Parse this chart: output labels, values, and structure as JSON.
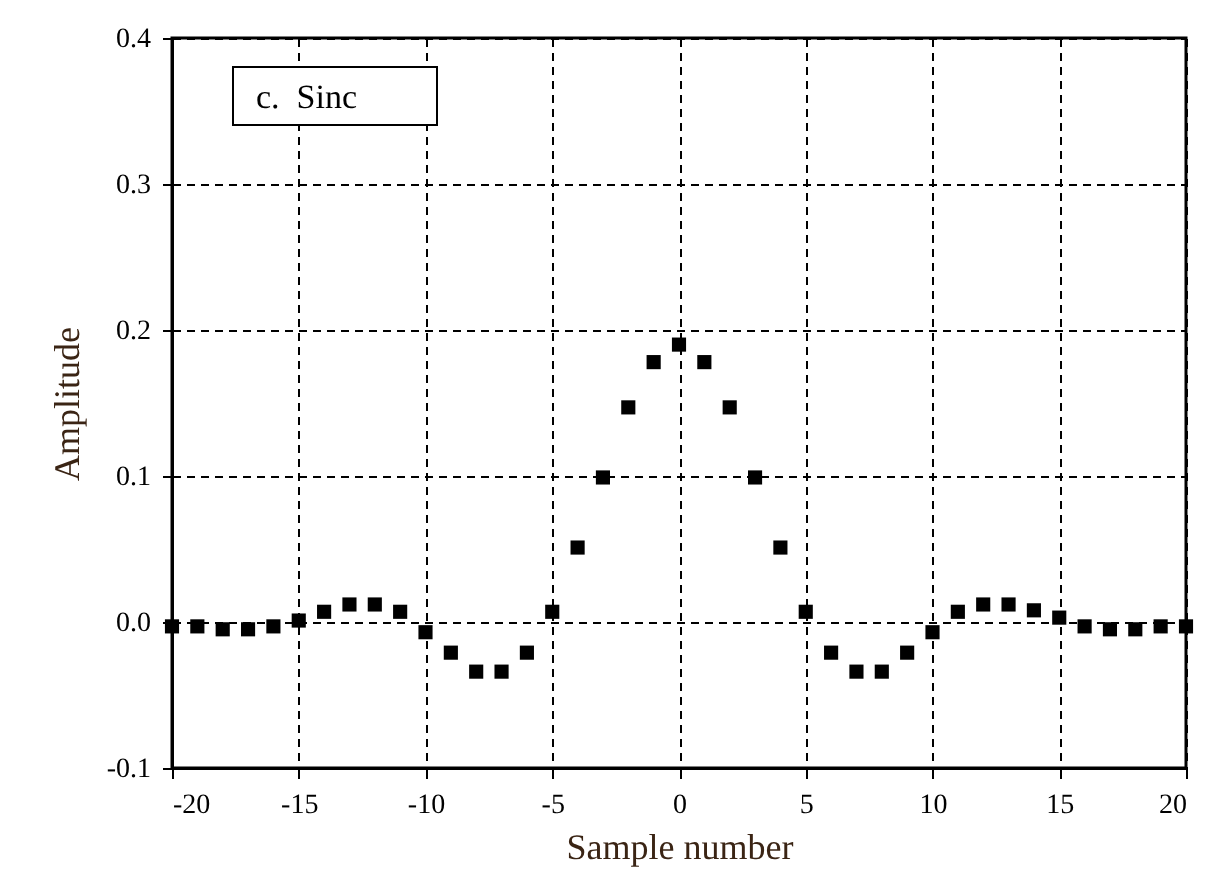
{
  "chart_data": {
    "type": "scatter",
    "xlabel": "Sample number",
    "ylabel": "Amplitude",
    "annotations": [
      "c.  Sinc"
    ],
    "x": [
      -20,
      -19,
      -18,
      -17,
      -16,
      -15,
      -14,
      -13,
      -12,
      -11,
      -10,
      -9,
      -8,
      -7,
      -6,
      -5,
      -4,
      -3,
      -2,
      -1,
      0,
      1,
      2,
      3,
      4,
      5,
      6,
      7,
      8,
      9,
      10,
      11,
      12,
      13,
      14,
      15,
      16,
      17,
      18,
      19,
      20
    ],
    "series": [
      {
        "color": "#000000",
        "values": [
          -0.003,
          -0.003,
          -0.005,
          -0.005,
          -0.003,
          0.001,
          0.007,
          0.012,
          0.012,
          0.007,
          -0.007,
          -0.021,
          -0.034,
          -0.034,
          -0.021,
          0.007,
          0.051,
          0.099,
          0.147,
          0.178,
          0.19,
          0.178,
          0.147,
          0.099,
          0.051,
          0.007,
          -0.021,
          -0.034,
          -0.034,
          -0.021,
          -0.007,
          0.007,
          0.012,
          0.012,
          0.008,
          0.003,
          -0.003,
          -0.005,
          -0.005,
          -0.003,
          -0.003
        ]
      }
    ],
    "xlim": [
      -20,
      20
    ],
    "xticks": [
      -20,
      -15,
      -10,
      -5,
      0,
      5,
      10,
      15,
      20
    ],
    "ylim": [
      -0.1,
      0.4
    ],
    "yticks": [
      {
        "value": -0.1,
        "label": "-0.1"
      },
      {
        "value": 0,
        "label": "0.0"
      },
      {
        "value": 0.1,
        "label": "0.1"
      },
      {
        "value": 0.2,
        "label": "0.2"
      },
      {
        "value": 0.3,
        "label": "0.3"
      },
      {
        "value": 0.4,
        "label": "0.4"
      }
    ],
    "grid": true,
    "marker": "square",
    "line_style": "dashed"
  }
}
